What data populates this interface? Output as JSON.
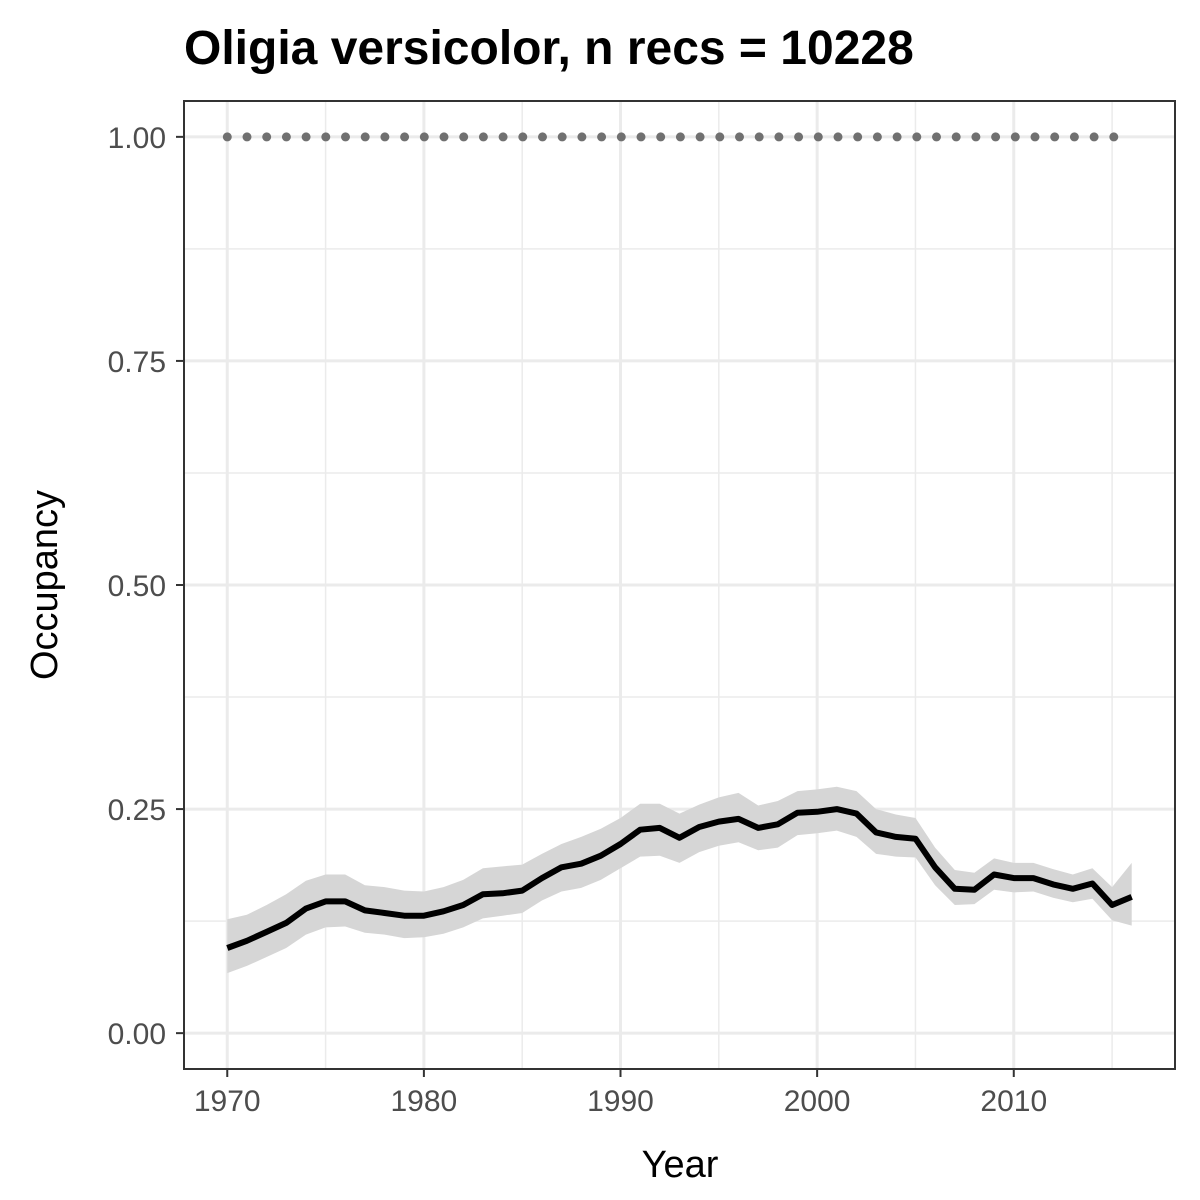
{
  "chart_data": {
    "type": "line",
    "title": "Oligia versicolor, n recs = 10228",
    "xlabel": "Year",
    "ylabel": "Occupancy",
    "xlim": [
      1967.8,
      2018.2
    ],
    "ylim": [
      -0.04,
      1.04
    ],
    "x_ticks": [
      1970,
      1980,
      1990,
      2000,
      2010
    ],
    "x_tick_labels": [
      "1970",
      "1980",
      "1990",
      "2000",
      "2010"
    ],
    "y_ticks": [
      0,
      0.25,
      0.5,
      0.75,
      1.0
    ],
    "y_tick_labels": [
      "0.00",
      "0.25",
      "0.50",
      "0.75",
      "1.00"
    ],
    "grid": true,
    "x": [
      1970,
      1971,
      1972,
      1973,
      1974,
      1975,
      1976,
      1977,
      1978,
      1979,
      1980,
      1981,
      1982,
      1983,
      1984,
      1985,
      1986,
      1987,
      1988,
      1989,
      1990,
      1991,
      1992,
      1993,
      1994,
      1995,
      1996,
      1997,
      1998,
      1999,
      2000,
      2001,
      2002,
      2003,
      2004,
      2005,
      2006,
      2007,
      2008,
      2009,
      2010,
      2011,
      2012,
      2013,
      2014,
      2015,
      2016
    ],
    "series": [
      {
        "name": "",
        "role": "mean occupancy",
        "color": "#000000",
        "values": [
          0.095,
          0.103,
          0.113,
          0.123,
          0.139,
          0.147,
          0.147,
          0.137,
          0.134,
          0.131,
          0.131,
          0.136,
          0.143,
          0.155,
          0.156,
          0.159,
          0.173,
          0.185,
          0.189,
          0.198,
          0.211,
          0.227,
          0.229,
          0.218,
          0.23,
          0.236,
          0.239,
          0.229,
          0.233,
          0.246,
          0.247,
          0.25,
          0.245,
          0.224,
          0.219,
          0.217,
          0.185,
          0.161,
          0.16,
          0.177,
          0.173,
          0.173,
          0.166,
          0.161,
          0.167,
          0.143,
          0.152
        ]
      },
      {
        "name": "",
        "role": "reference line",
        "color": "#707070",
        "style": "dotted",
        "values": [
          1,
          1,
          1,
          1,
          1,
          1,
          1,
          1,
          1,
          1,
          1,
          1,
          1,
          1,
          1,
          1,
          1,
          1,
          1,
          1,
          1,
          1,
          1,
          1,
          1,
          1,
          1,
          1,
          1,
          1,
          1,
          1,
          1,
          1,
          1,
          1,
          1,
          1,
          1,
          1,
          1,
          1,
          1,
          1,
          1,
          1,
          1
        ]
      }
    ],
    "ribbon": {
      "color": "#d6d6d6",
      "lower": [
        0.067,
        0.075,
        0.085,
        0.095,
        0.11,
        0.118,
        0.119,
        0.112,
        0.11,
        0.106,
        0.107,
        0.111,
        0.118,
        0.128,
        0.131,
        0.134,
        0.148,
        0.158,
        0.162,
        0.171,
        0.184,
        0.197,
        0.198,
        0.19,
        0.202,
        0.209,
        0.213,
        0.204,
        0.207,
        0.221,
        0.223,
        0.226,
        0.219,
        0.2,
        0.197,
        0.196,
        0.165,
        0.143,
        0.144,
        0.16,
        0.157,
        0.158,
        0.151,
        0.146,
        0.15,
        0.126,
        0.12
      ],
      "upper": [
        0.127,
        0.132,
        0.143,
        0.155,
        0.17,
        0.177,
        0.177,
        0.165,
        0.163,
        0.159,
        0.158,
        0.163,
        0.171,
        0.184,
        0.186,
        0.188,
        0.2,
        0.211,
        0.219,
        0.228,
        0.24,
        0.256,
        0.256,
        0.245,
        0.255,
        0.263,
        0.268,
        0.254,
        0.259,
        0.27,
        0.272,
        0.275,
        0.27,
        0.25,
        0.244,
        0.24,
        0.207,
        0.182,
        0.179,
        0.195,
        0.19,
        0.19,
        0.183,
        0.177,
        0.184,
        0.163,
        0.19
      ]
    }
  }
}
